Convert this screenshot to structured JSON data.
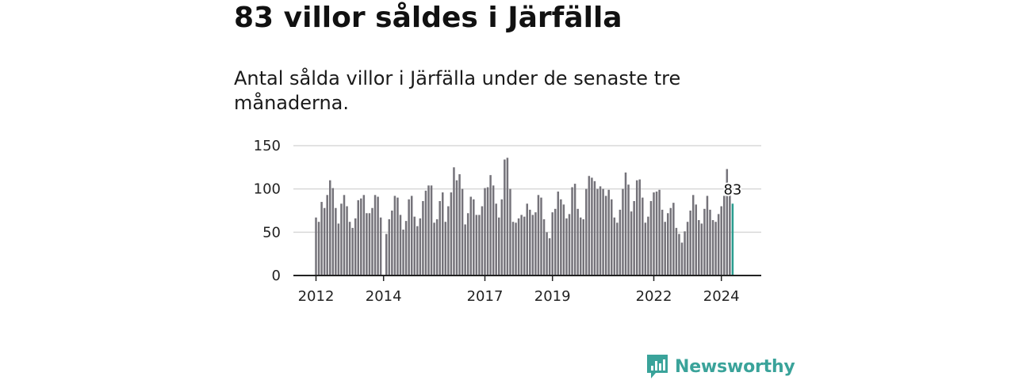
{
  "title": "83 villor såldes i Järfälla",
  "subtitle": "Antal sålda villor i Järfälla under de senaste tre månaderna.",
  "brand": {
    "name": "Newsworthy",
    "icon": "newsworthy-logo-icon"
  },
  "colors": {
    "bar": "#75737a",
    "highlight": "#2a9d8f",
    "grid": "#d9d9d9",
    "axis": "#222222",
    "brand": "#3aa39a"
  },
  "chart_data": {
    "type": "bar",
    "title": "Antal sålda villor i Järfälla under de senaste tre månaderna.",
    "xlabel": "",
    "ylabel": "",
    "ylim": [
      0,
      150
    ],
    "yticks": [
      0,
      50,
      100,
      150
    ],
    "yticks_labels": [
      "0",
      "50",
      "100",
      "150"
    ],
    "grid": true,
    "x_start": "2012-01",
    "x_unit": "month",
    "xtick_labels": [
      {
        "label": "2012",
        "index": 0
      },
      {
        "label": "2014",
        "index": 24
      },
      {
        "label": "2017",
        "index": 60
      },
      {
        "label": "2019",
        "index": 84
      },
      {
        "label": "2022",
        "index": 120
      },
      {
        "label": "2024",
        "index": 144
      }
    ],
    "values": [
      67,
      62,
      85,
      78,
      93,
      110,
      101,
      78,
      60,
      83,
      93,
      80,
      62,
      55,
      66,
      87,
      89,
      93,
      72,
      72,
      78,
      93,
      91,
      67,
      0,
      48,
      65,
      75,
      92,
      90,
      70,
      53,
      63,
      88,
      92,
      68,
      57,
      66,
      86,
      98,
      104,
      104,
      61,
      65,
      86,
      96,
      62,
      80,
      96,
      125,
      110,
      117,
      100,
      59,
      72,
      91,
      88,
      70,
      70,
      80,
      101,
      102,
      116,
      104,
      83,
      67,
      88,
      134,
      136,
      100,
      62,
      61,
      66,
      70,
      68,
      83,
      76,
      70,
      73,
      93,
      90,
      65,
      50,
      43,
      73,
      77,
      97,
      88,
      82,
      66,
      71,
      102,
      106,
      77,
      67,
      65,
      100,
      115,
      113,
      109,
      100,
      103,
      100,
      92,
      99,
      88,
      67,
      61,
      76,
      100,
      119,
      105,
      74,
      86,
      110,
      111,
      90,
      61,
      68,
      86,
      96,
      97,
      99,
      76,
      62,
      72,
      78,
      84,
      55,
      48,
      38,
      51,
      62,
      75,
      93,
      82,
      64,
      60,
      77,
      92,
      76,
      64,
      62,
      71,
      80,
      92,
      123,
      93,
      83
    ],
    "highlight_label": "83"
  }
}
